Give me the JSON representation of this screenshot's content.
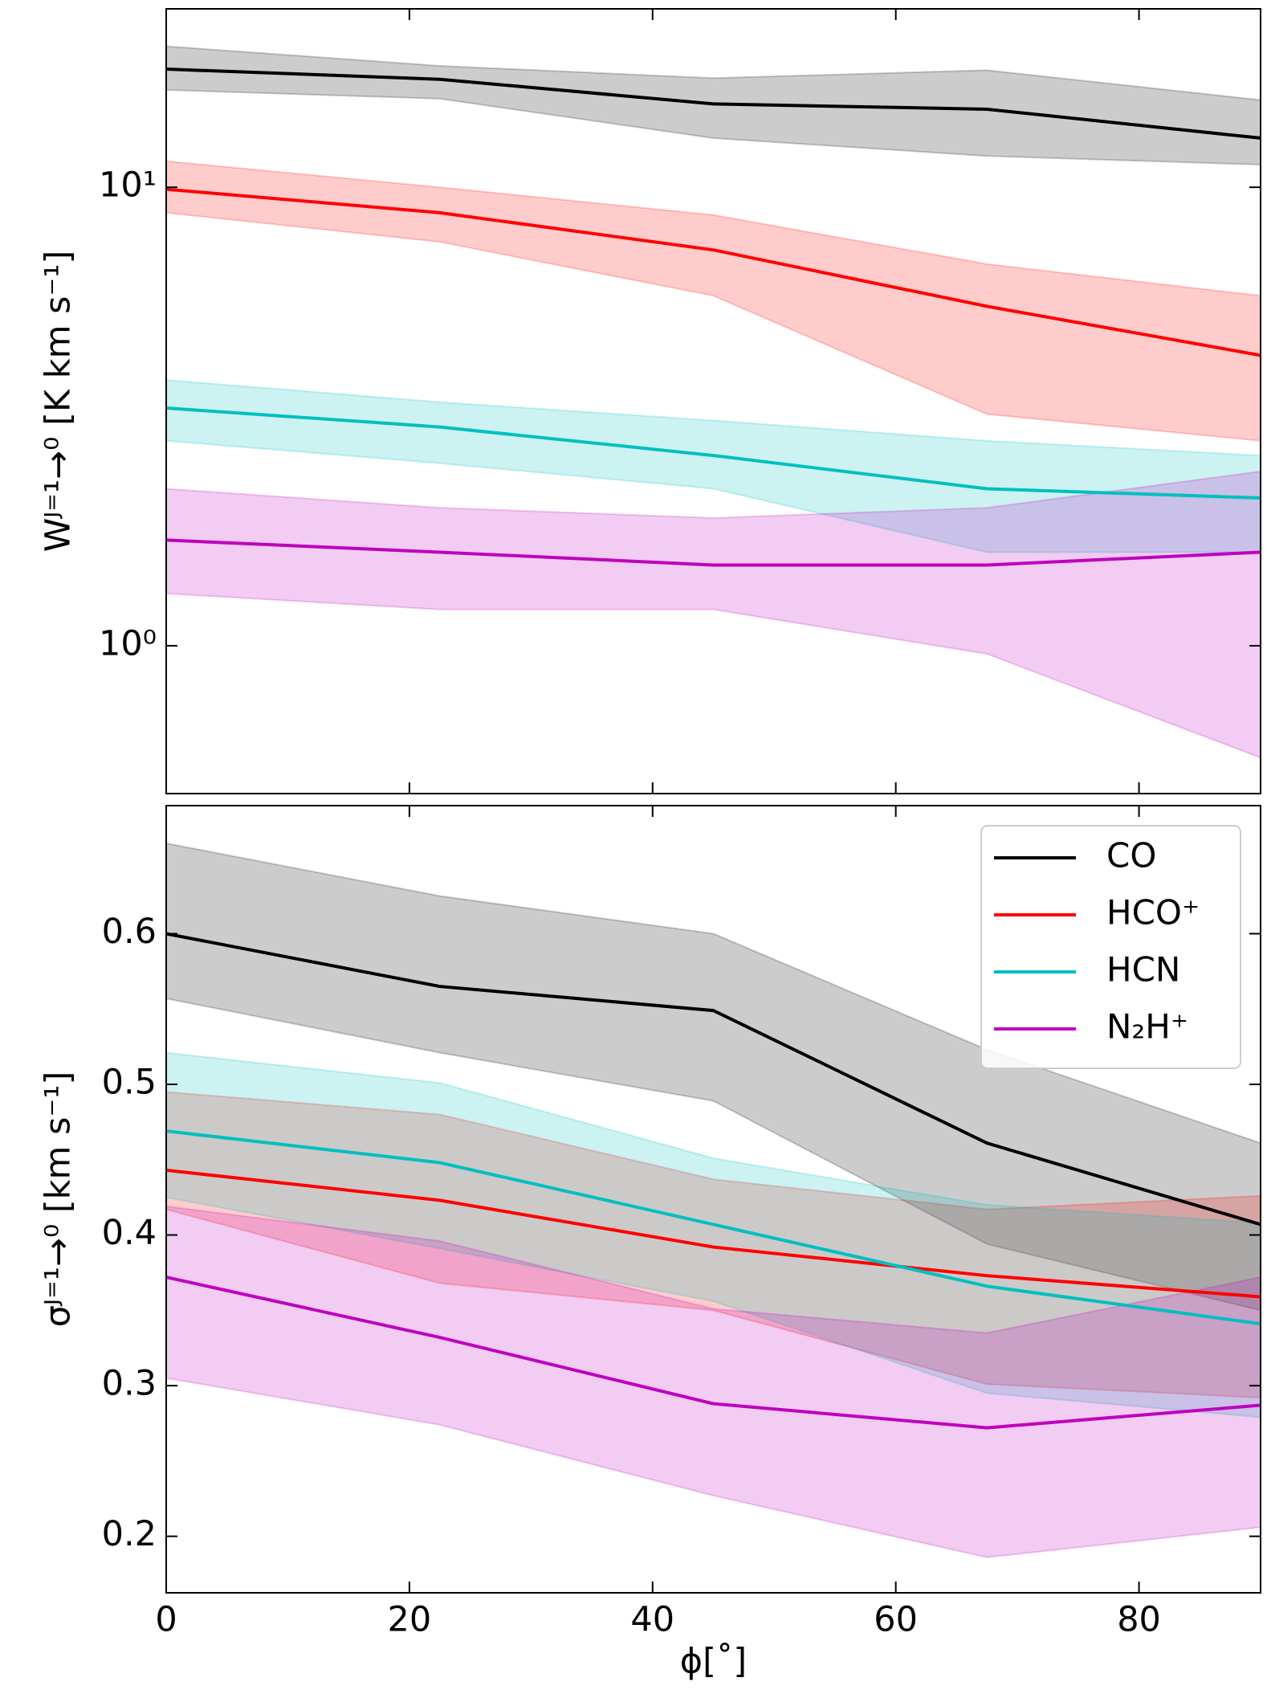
{
  "chart_data": [
    {
      "type": "line",
      "log_y": true,
      "ylabel": "Wᴶ⁼¹→⁰ [K km s⁻¹]",
      "x": [
        0,
        22.5,
        45,
        67.5,
        90
      ],
      "xlim": [
        0,
        90
      ],
      "xticks": [
        0,
        20,
        40,
        60,
        80
      ],
      "show_xticklabels": false,
      "ylim": [
        0.476,
        24.5
      ],
      "yticks": [
        {
          "value": 1,
          "label": "10⁰"
        },
        {
          "value": 10,
          "label": "10¹"
        }
      ],
      "series": [
        {
          "color": "#000000",
          "values": [
            18.1,
            17.2,
            15.2,
            14.8,
            12.8
          ],
          "upper": [
            20.3,
            18.4,
            17.3,
            18.0,
            15.5
          ],
          "lower": [
            16.3,
            15.6,
            12.8,
            11.7,
            11.2
          ]
        },
        {
          "color": "#ff0000",
          "values": [
            9.9,
            8.8,
            7.3,
            5.5,
            4.3
          ],
          "upper": [
            11.4,
            10,
            8.7,
            6.8,
            5.8
          ],
          "lower": [
            8.8,
            7.6,
            5.8,
            3.2,
            2.8
          ]
        },
        {
          "color": "#00bfbf",
          "values": [
            3.3,
            3.0,
            2.6,
            2.2,
            2.1
          ],
          "upper": [
            3.8,
            3.4,
            3.1,
            2.8,
            2.6
          ],
          "lower": [
            2.8,
            2.5,
            2.2,
            1.6,
            1.6
          ]
        },
        {
          "color": "#bf00bf",
          "values": [
            1.7,
            1.6,
            1.5,
            1.5,
            1.6
          ],
          "upper": [
            2.2,
            2.0,
            1.9,
            2.0,
            2.4
          ],
          "lower": [
            1.3,
            1.2,
            1.2,
            0.96,
            0.57
          ]
        }
      ]
    },
    {
      "type": "line",
      "log_y": false,
      "ylabel": "σᴶ⁼¹→⁰ [km s⁻¹]",
      "xlabel": "ϕ[˚]",
      "x": [
        0,
        22.5,
        45,
        67.5,
        90
      ],
      "xlim": [
        0,
        90
      ],
      "xticks": [
        0,
        20,
        40,
        60,
        80
      ],
      "show_xticklabels": true,
      "ylim": [
        0.1625,
        0.685
      ],
      "yticks": [
        0.2,
        0.3,
        0.4,
        0.5,
        0.6
      ],
      "legend": "upper right",
      "series": [
        {
          "name": "CO",
          "color": "#000000",
          "values": [
            0.6,
            0.565,
            0.549,
            0.461,
            0.407
          ],
          "upper": [
            0.66,
            0.625,
            0.6,
            0.523,
            0.461
          ],
          "lower": [
            0.557,
            0.521,
            0.489,
            0.394,
            0.35
          ]
        },
        {
          "name": "HCO⁺",
          "color": "#ff0000",
          "values": [
            0.443,
            0.423,
            0.392,
            0.373,
            0.359
          ],
          "upper": [
            0.495,
            0.48,
            0.437,
            0.417,
            0.426
          ],
          "lower": [
            0.417,
            0.368,
            0.35,
            0.301,
            0.292
          ]
        },
        {
          "name": "HCN",
          "color": "#00bfbf",
          "values": [
            0.469,
            0.448,
            0.407,
            0.366,
            0.341
          ],
          "upper": [
            0.521,
            0.501,
            0.451,
            0.42,
            0.408
          ],
          "lower": [
            0.425,
            0.391,
            0.356,
            0.295,
            0.279
          ]
        },
        {
          "name": "N₂H⁺",
          "color": "#bf00bf",
          "values": [
            0.372,
            0.332,
            0.288,
            0.272,
            0.287
          ],
          "upper": [
            0.419,
            0.396,
            0.351,
            0.335,
            0.372
          ],
          "lower": [
            0.305,
            0.274,
            0.227,
            0.186,
            0.206
          ]
        }
      ]
    }
  ]
}
